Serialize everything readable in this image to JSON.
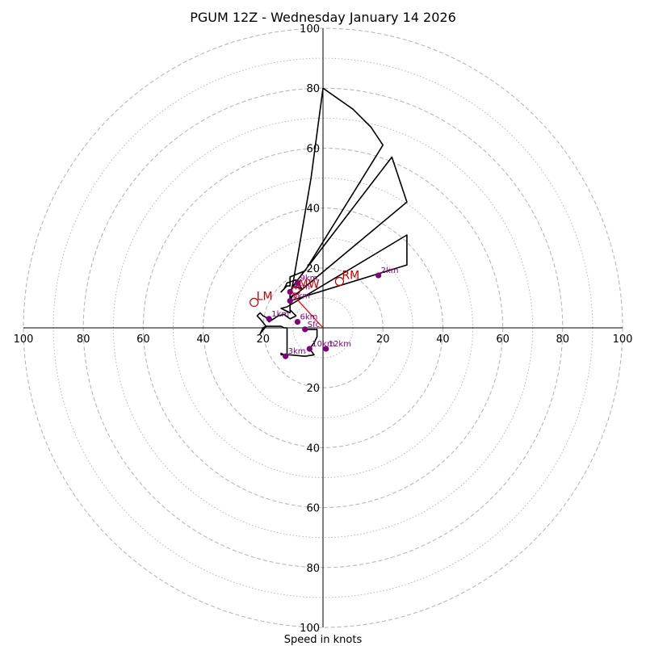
{
  "chart_data": {
    "type": "hodograph",
    "title": "PGUM 12Z - Wednesday January 14 2026",
    "xlabel": "Speed in knots",
    "units": "knots",
    "range": [
      -100,
      100
    ],
    "ring_major": [
      20,
      40,
      60,
      80,
      100
    ],
    "ring_minor": [
      10,
      30,
      50,
      70,
      90
    ],
    "tick_labels": {
      "top": [
        "100",
        "80",
        "60",
        "40",
        "20"
      ],
      "bottom": [
        "20",
        "40",
        "60",
        "80",
        "100"
      ],
      "left": [
        "100",
        "80",
        "60",
        "40",
        "20"
      ],
      "right": [
        "20",
        "40",
        "60",
        "80",
        "100"
      ]
    },
    "tick_values": {
      "top": [
        100,
        80,
        60,
        40,
        20
      ],
      "bottom": [
        20,
        40,
        60,
        80,
        100
      ],
      "left": [
        100,
        80,
        60,
        40,
        20
      ],
      "right": [
        20,
        40,
        60,
        80,
        100
      ]
    },
    "trace": [
      [
        -6,
        -0.5
      ],
      [
        -2,
        -0.5
      ],
      [
        -2,
        -3
      ],
      [
        -3,
        -5
      ],
      [
        -4.5,
        -7
      ],
      [
        -3,
        -9
      ],
      [
        -6,
        -9.5
      ],
      [
        -11,
        -9
      ],
      [
        -13,
        -9
      ],
      [
        -14,
        -8.5
      ],
      [
        -14,
        -9
      ],
      [
        -12,
        -9
      ],
      [
        -12,
        -6
      ],
      [
        -12,
        -0.5
      ],
      [
        -12,
        0
      ],
      [
        -13,
        0
      ],
      [
        -14,
        0.5
      ],
      [
        -17,
        0.5
      ],
      [
        -19,
        0.5
      ],
      [
        -20,
        0
      ],
      [
        -21,
        -2
      ],
      [
        -19,
        0.5
      ],
      [
        -21,
        3
      ],
      [
        -22,
        4
      ],
      [
        -21,
        5
      ],
      [
        -20,
        4
      ],
      [
        -19,
        3.5
      ],
      [
        -18,
        2
      ],
      [
        -15,
        4
      ],
      [
        -13,
        4.5
      ],
      [
        -11,
        3
      ],
      [
        -9,
        4
      ],
      [
        -11,
        6
      ],
      [
        -11,
        5
      ],
      [
        -14,
        6.5
      ],
      [
        -12,
        7
      ],
      [
        28,
        31
      ],
      [
        28,
        21
      ],
      [
        -11,
        9
      ],
      [
        -10,
        11
      ],
      [
        -11,
        10
      ],
      [
        -8,
        12
      ],
      [
        28,
        42
      ],
      [
        23,
        57
      ],
      [
        -10,
        14
      ],
      [
        -7,
        13
      ],
      [
        -9,
        16
      ],
      [
        -12,
        15
      ],
      [
        -13,
        13
      ],
      [
        -14,
        12
      ],
      [
        -12,
        14
      ],
      [
        -11,
        14
      ],
      [
        -11,
        17
      ],
      [
        -6,
        19
      ],
      [
        20,
        61
      ],
      [
        16,
        67
      ],
      [
        14,
        69
      ],
      [
        10,
        73
      ],
      [
        0,
        80
      ],
      [
        -4,
        50
      ],
      [
        -10,
        15
      ],
      [
        -11,
        11
      ],
      [
        -11,
        8
      ],
      [
        -11,
        6
      ],
      [
        -11,
        5
      ]
    ],
    "height_markers": [
      {
        "label": "Sfc",
        "u": -6,
        "v": -0.5
      },
      {
        "label": "1km",
        "u": -18,
        "v": 3
      },
      {
        "label": "2km",
        "u": 18.5,
        "v": 17.5
      },
      {
        "label": "3km",
        "u": -12.5,
        "v": -9.5
      },
      {
        "label": "4km",
        "u": -11,
        "v": 12
      },
      {
        "label": "5km",
        "u": -11,
        "v": 9
      },
      {
        "label": "6km",
        "u": -8.5,
        "v": 2
      },
      {
        "label": "9km",
        "u": -8.5,
        "v": 15
      },
      {
        "label": "10km",
        "u": -4.5,
        "v": -7
      },
      {
        "label": "12km",
        "u": 1,
        "v": -7
      }
    ],
    "storm_motion": [
      {
        "label": "RM",
        "u": 5.5,
        "v": 15.5
      },
      {
        "label": "LM",
        "u": -23,
        "v": 8.5
      },
      {
        "label": "MW",
        "u": -9,
        "v": 12.5
      }
    ],
    "shear_vector": {
      "from": [
        0,
        0
      ],
      "to": [
        -10,
        11
      ]
    },
    "colors": {
      "trace": "#000000",
      "marker": "#800080",
      "motion": "#cc0000",
      "shear": "#ff0000",
      "grid": "#b8b8b8"
    }
  }
}
